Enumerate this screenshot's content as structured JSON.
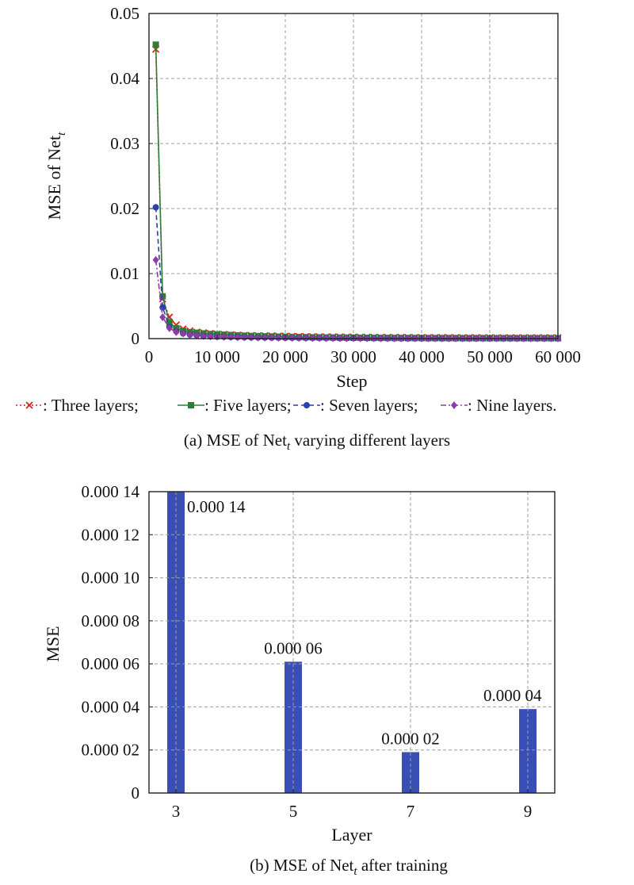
{
  "chart_data": [
    {
      "type": "line",
      "ylabel_main": "MSE of Net",
      "ylabel_sub": "t",
      "xlabel": "Step",
      "xlim": [
        0,
        60000
      ],
      "ylim": [
        0,
        0.05
      ],
      "xticks": [
        0,
        10000,
        20000,
        30000,
        40000,
        50000,
        60000
      ],
      "xtick_labels": [
        "0",
        "10 000",
        "20 000",
        "30 000",
        "40 000",
        "50 000",
        "60 000"
      ],
      "yticks": [
        0,
        0.01,
        0.02,
        0.03,
        0.04,
        0.05
      ],
      "ytick_labels": [
        "0",
        "0.01",
        "0.02",
        "0.03",
        "0.04",
        "0.05"
      ],
      "grid": true,
      "x": [
        1000,
        2000,
        3000,
        4000,
        5000,
        6000,
        7000,
        8000,
        9000,
        10000,
        11000,
        12000,
        13000,
        14000,
        15000,
        16000,
        17000,
        18000,
        19000,
        20000,
        21000,
        22000,
        23000,
        24000,
        25000,
        26000,
        27000,
        28000,
        29000,
        30000,
        31000,
        32000,
        33000,
        34000,
        35000,
        36000,
        37000,
        38000,
        39000,
        40000,
        41000,
        42000,
        43000,
        44000,
        45000,
        46000,
        47000,
        48000,
        49000,
        50000,
        51000,
        52000,
        53000,
        54000,
        55000,
        56000,
        57000,
        58000,
        59000,
        60000
      ],
      "series": [
        {
          "name": "Three layers",
          "color": "#e02020",
          "marker": "x",
          "dash": "2 3",
          "values": [
            0.0445,
            0.0061,
            0.0033,
            0.0021,
            0.0015,
            0.0012,
            0.001,
            0.0009,
            0.0008,
            0.0007,
            0.00065,
            0.0006,
            0.00055,
            0.0005,
            0.00048,
            0.00046,
            0.00044,
            0.00042,
            0.0004,
            0.00038,
            0.00036,
            0.00034,
            0.00032,
            0.0003,
            0.00029,
            0.00028,
            0.00027,
            0.00026,
            0.00025,
            0.00024,
            0.00023,
            0.00022,
            0.00021,
            0.0002,
            0.0002,
            0.00019,
            0.00019,
            0.00018,
            0.00018,
            0.00017,
            0.00017,
            0.00016,
            0.00016,
            0.00016,
            0.00015,
            0.00015,
            0.00015,
            0.00015,
            0.00014,
            0.00014,
            0.00014,
            0.00014,
            0.00014,
            0.00014,
            0.00014,
            0.00014,
            0.00014,
            0.00014,
            0.00014,
            0.00014
          ]
        },
        {
          "name": "Five layers",
          "color": "#2e7d32",
          "marker": "square",
          "dash": "",
          "values": [
            0.0452,
            0.0065,
            0.0025,
            0.0016,
            0.0012,
            0.001,
            0.0009,
            0.0008,
            0.0007,
            0.00065,
            0.0006,
            0.00055,
            0.0005,
            0.00045,
            0.0004,
            0.00038,
            0.00035,
            0.00033,
            0.0003,
            0.00028,
            0.00026,
            0.00024,
            0.00022,
            0.0002,
            0.00019,
            0.00018,
            0.00017,
            0.00016,
            0.00015,
            0.00014,
            0.00013,
            0.00012,
            0.00011,
            0.0001,
            0.0001,
            9e-05,
            9e-05,
            8e-05,
            8e-05,
            8e-05,
            7e-05,
            7e-05,
            7e-05,
            7e-05,
            7e-05,
            6e-05,
            6e-05,
            6e-05,
            6e-05,
            6e-05,
            6e-05,
            6e-05,
            6e-05,
            6e-05,
            6e-05,
            6e-05,
            6e-05,
            6e-05,
            6e-05,
            6e-05
          ]
        },
        {
          "name": "Seven layers",
          "color": "#2b3fa8",
          "marker": "circle",
          "dash": "6 4",
          "values": [
            0.0202,
            0.0048,
            0.0018,
            0.0011,
            0.0008,
            0.0006,
            0.0005,
            0.0004,
            0.00035,
            0.0003,
            0.00028,
            0.00025,
            0.00022,
            0.0002,
            0.00018,
            0.00016,
            0.00015,
            0.00014,
            0.00013,
            0.00012,
            0.00011,
            0.0001,
            9e-05,
            8e-05,
            8e-05,
            7e-05,
            7e-05,
            6e-05,
            6e-05,
            5e-05,
            5e-05,
            5e-05,
            4e-05,
            4e-05,
            4e-05,
            4e-05,
            3e-05,
            3e-05,
            3e-05,
            3e-05,
            3e-05,
            3e-05,
            2e-05,
            2e-05,
            2e-05,
            2e-05,
            2e-05,
            2e-05,
            2e-05,
            2e-05,
            2e-05,
            2e-05,
            2e-05,
            2e-05,
            2e-05,
            2e-05,
            2e-05,
            2e-05,
            2e-05,
            2e-05
          ]
        },
        {
          "name": "Nine layers",
          "color": "#8e3aa8",
          "marker": "diamond",
          "dash": "7 3 2 3",
          "values": [
            0.0121,
            0.0033,
            0.0016,
            0.001,
            0.0008,
            0.0006,
            0.0005,
            0.0004,
            0.00035,
            0.0003,
            0.00028,
            0.00025,
            0.00022,
            0.0002,
            0.00018,
            0.00017,
            0.00016,
            0.00015,
            0.00014,
            0.00013,
            0.00012,
            0.00011,
            0.0001,
            9e-05,
            9e-05,
            8e-05,
            8e-05,
            7e-05,
            7e-05,
            7e-05,
            6e-05,
            6e-05,
            6e-05,
            5e-05,
            5e-05,
            5e-05,
            5e-05,
            5e-05,
            4e-05,
            4e-05,
            4e-05,
            4e-05,
            4e-05,
            4e-05,
            4e-05,
            4e-05,
            4e-05,
            4e-05,
            4e-05,
            4e-05,
            4e-05,
            4e-05,
            4e-05,
            4e-05,
            4e-05,
            4e-05,
            4e-05,
            4e-05,
            4e-05,
            4e-05
          ]
        }
      ],
      "legend": {
        "entries": [
          ": Three layers;",
          ": Five layers;",
          ": Seven layers;",
          ": Nine layers."
        ],
        "placement": "bottom"
      },
      "caption_main": "(a) MSE of Net",
      "caption_sub": "t",
      "caption_rest": " varying different layers"
    },
    {
      "type": "bar",
      "ylabel": "MSE",
      "xlabel": "Layer",
      "categories": [
        "3",
        "5",
        "7",
        "9"
      ],
      "values": [
        0.00014,
        6e-05,
        2e-05,
        4e-05
      ],
      "bar_heights_visual": [
        0.00014,
        6.1e-05,
        1.9e-05,
        3.9e-05
      ],
      "data_labels": [
        "0.000 14",
        "0.000 06",
        "0.000 02",
        "0.000 04"
      ],
      "ylim": [
        0,
        0.00014
      ],
      "yticks": [
        0,
        2e-05,
        4e-05,
        6e-05,
        8e-05,
        0.0001,
        0.00012,
        0.00014
      ],
      "ytick_labels": [
        "0",
        "0.000 02",
        "0.000 04",
        "0.000 06",
        "0.000 08",
        "0.000 10",
        "0.000 12",
        "0.000 14"
      ],
      "grid": true,
      "color": "#3a4fb5",
      "caption_main": "(b) MSE of Net",
      "caption_sub": "t",
      "caption_rest": " after training"
    }
  ]
}
